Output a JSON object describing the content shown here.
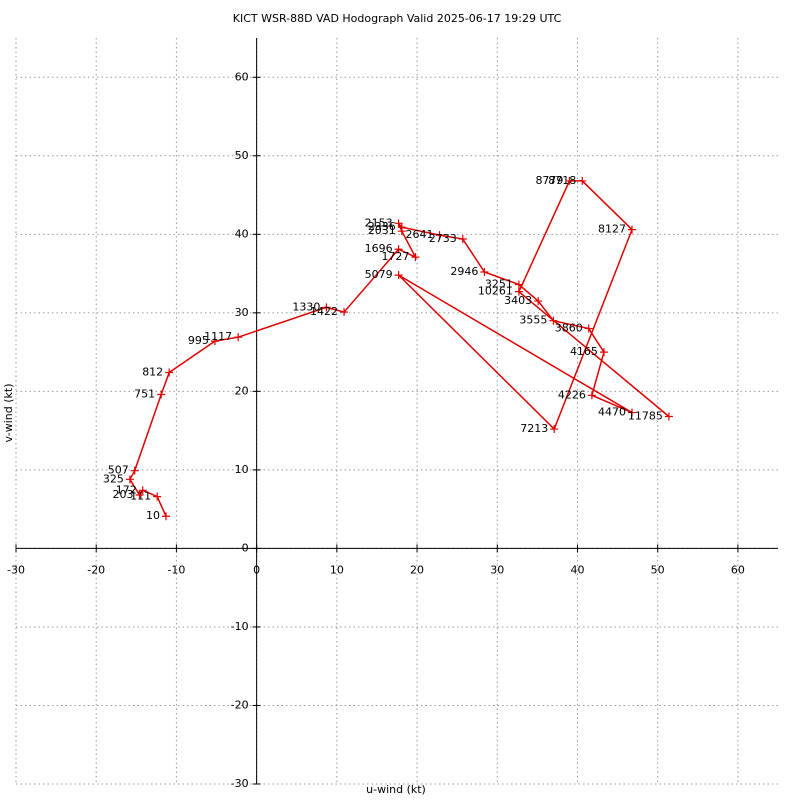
{
  "chart_data": {
    "type": "line",
    "title": "KICT WSR-88D VAD Hodograph Valid 2025-06-17 19:29 UTC",
    "x_label": "u-wind (kt)",
    "y_label": "v-wind (kt)",
    "heights": [
      10,
      111,
      172,
      203,
      325,
      507,
      751,
      812,
      995,
      1117,
      1330,
      1422,
      1696,
      1727,
      2031,
      2153,
      2336,
      2641,
      2733,
      2946,
      3251,
      3403,
      3555,
      3860,
      4165,
      4226,
      4470,
      5079,
      7213,
      8127,
      8718,
      8779,
      10261,
      11785
    ],
    "x": [
      -11.3,
      -12.4,
      -14.2,
      -14.6,
      -15.8,
      -15.2,
      -11.9,
      -10.9,
      -5.2,
      -2.3,
      8.7,
      10.9,
      17.7,
      19.8,
      18.1,
      17.7,
      18.1,
      22.8,
      25.7,
      28.4,
      32.7,
      35.1,
      37.0,
      41.4,
      43.3,
      41.8,
      46.8,
      17.7,
      37.1,
      46.8,
      40.6,
      39.0,
      32.7,
      51.4
    ],
    "values": [
      4.1,
      6.6,
      7.4,
      6.8,
      8.8,
      9.9,
      19.6,
      22.4,
      26.4,
      26.9,
      30.7,
      30.1,
      38.1,
      37.1,
      40.4,
      41.4,
      40.9,
      39.9,
      39.4,
      35.2,
      33.6,
      31.5,
      29.0,
      28.0,
      25.0,
      19.5,
      17.3,
      34.8,
      15.2,
      40.6,
      46.8,
      46.8,
      32.7,
      16.8
    ],
    "color": "#e00000",
    "xlim": [
      -30,
      65
    ],
    "ylim": [
      -30,
      65
    ],
    "xticks": [
      -30,
      -20,
      -10,
      0,
      10,
      20,
      30,
      40,
      50,
      60
    ],
    "yticks": [
      -30,
      -20,
      -10,
      0,
      10,
      20,
      30,
      40,
      50,
      60
    ],
    "grid": true
  }
}
